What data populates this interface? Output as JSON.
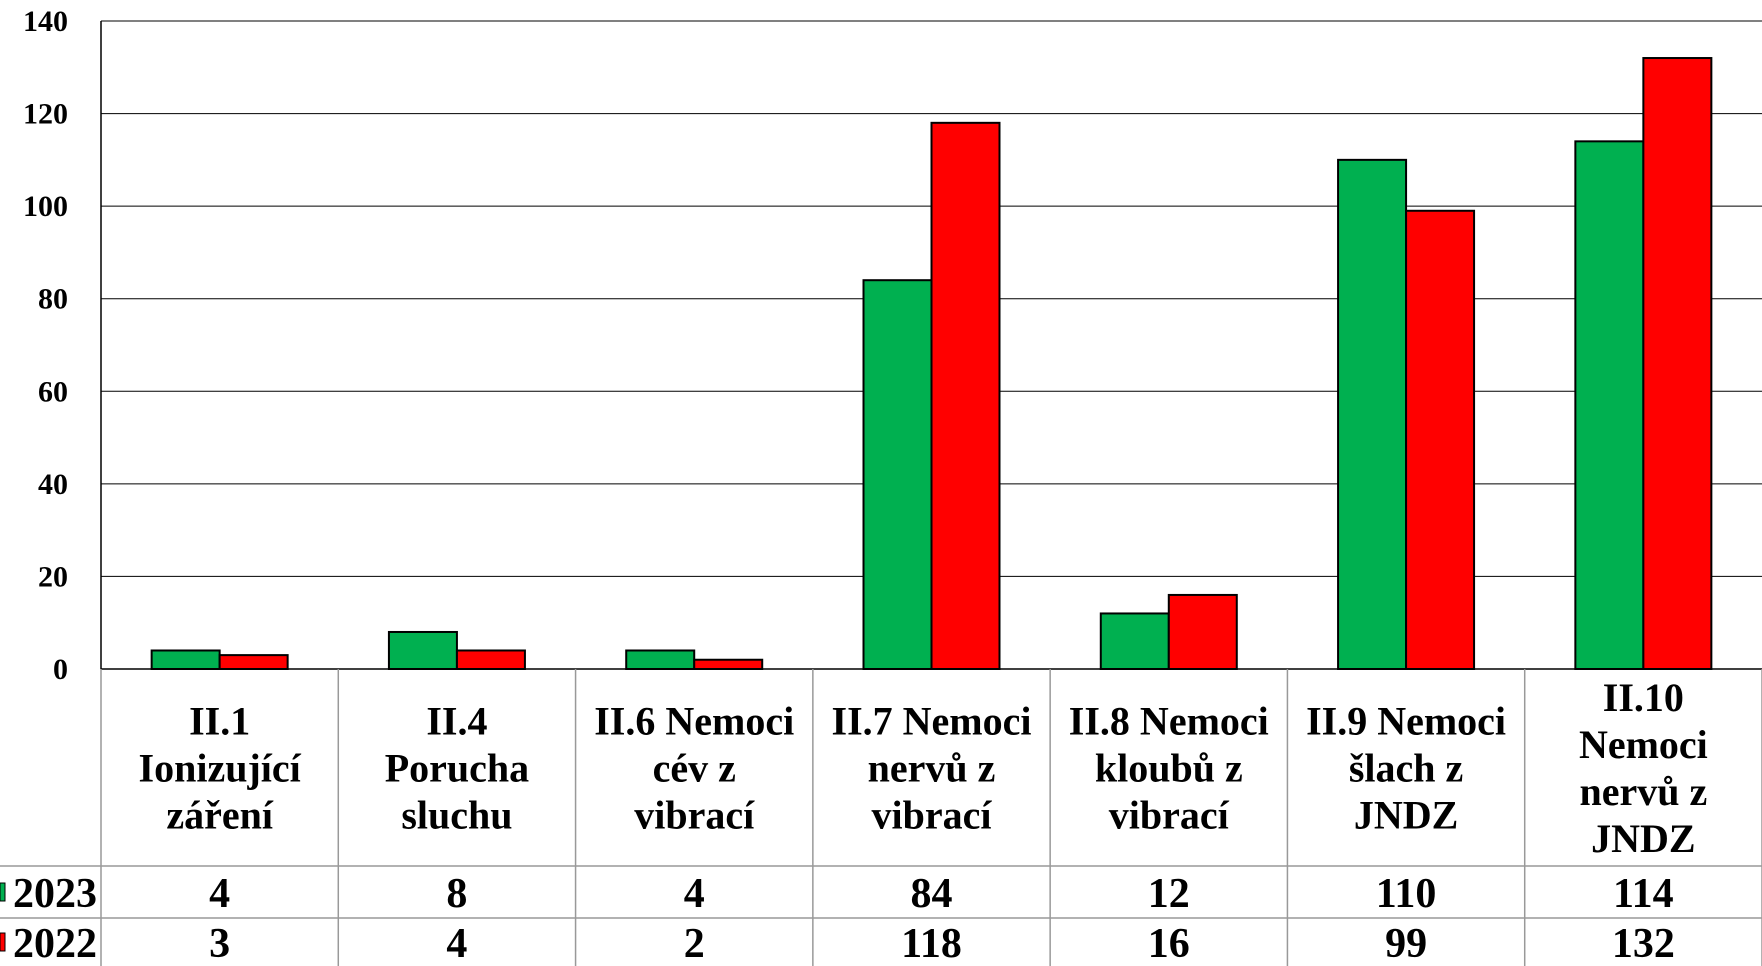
{
  "chart_data": {
    "type": "bar",
    "categories": [
      [
        "II.1",
        "Ionizující",
        "záření"
      ],
      [
        "II.4",
        "Porucha",
        "sluchu"
      ],
      [
        "II.6 Nemoci",
        "cév z",
        "vibrací"
      ],
      [
        "II.7 Nemoci",
        "nervů z",
        "vibrací"
      ],
      [
        "II.8 Nemoci",
        "kloubů z",
        "vibrací"
      ],
      [
        "II.9 Nemoci",
        "šlach z",
        "JNDZ"
      ],
      [
        "II.10",
        "Nemoci",
        "nervů z",
        "JNDZ"
      ]
    ],
    "series": [
      {
        "name": "2023",
        "color": "#00b050",
        "values": [
          4,
          8,
          4,
          84,
          12,
          110,
          114
        ]
      },
      {
        "name": "2022",
        "color": "#ff0000",
        "values": [
          3,
          4,
          2,
          118,
          16,
          99,
          132
        ]
      }
    ],
    "yticks": [
      "0",
      "20",
      "40",
      "60",
      "80",
      "100",
      "120",
      "140"
    ],
    "ylim": [
      0,
      140
    ],
    "grid": true,
    "legend": "data-table-left",
    "title": "",
    "xlabel": "",
    "ylabel": ""
  }
}
